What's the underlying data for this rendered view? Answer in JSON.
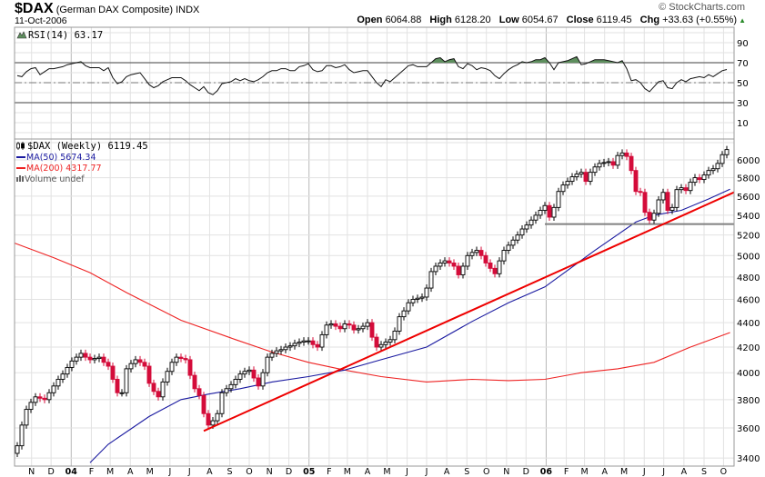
{
  "header": {
    "symbol": "$DAX",
    "name": "(German DAX Composite) INDX",
    "date": "11-Oct-2006",
    "copyright": "© StockCharts.com",
    "quote": {
      "open_label": "Open",
      "open": "6064.88",
      "high_label": "High",
      "high": "6128.20",
      "low_label": "Low",
      "low": "6054.67",
      "close_label": "Close",
      "close": "6119.45",
      "chg_label": "Chg",
      "chg": "+33.63 (+0.55%)",
      "direction_icon": "triangle-up-icon"
    }
  },
  "legend": {
    "rsi": "RSI(14) 63.17",
    "price": "$DAX (Weekly) 6119.45",
    "ma50": "MA(50) 5674.34",
    "ma200": "MA(200) 4317.77",
    "volume": "Volume undef"
  },
  "colors": {
    "up_candle": "#ffffff",
    "down_candle": "#d40c3a",
    "ma50": "#1a1aa0",
    "ma200": "#ee2222",
    "trendline": "#ee0000",
    "support": "#808080",
    "rsi_overbought_fill": "#5e8f5e",
    "chg_up": "#2a8a2a"
  },
  "chart_data": {
    "type": "candlestick",
    "interval": "weekly",
    "x_range": [
      "2003-10-10",
      "2006-10-11"
    ],
    "price_axis": {
      "scale": "log",
      "range": [
        3350,
        6300
      ],
      "ticks": [
        "6000",
        "5800",
        "5600",
        "5400",
        "5200",
        "5000",
        "4800",
        "4600",
        "4400",
        "4200",
        "4000",
        "3800",
        "3600",
        "3400"
      ],
      "side": "right",
      "grid": true
    },
    "month_ticks": [
      {
        "label": "N",
        "date": "2003-11-01"
      },
      {
        "label": "D",
        "date": "2003-12-01"
      },
      {
        "label": "04",
        "date": "2004-01-01",
        "year": true
      },
      {
        "label": "F",
        "date": "2004-02-01"
      },
      {
        "label": "M",
        "date": "2004-03-01"
      },
      {
        "label": "A",
        "date": "2004-04-01"
      },
      {
        "label": "M",
        "date": "2004-05-01"
      },
      {
        "label": "J",
        "date": "2004-06-01"
      },
      {
        "label": "J",
        "date": "2004-07-01"
      },
      {
        "label": "A",
        "date": "2004-08-01"
      },
      {
        "label": "S",
        "date": "2004-09-01"
      },
      {
        "label": "O",
        "date": "2004-10-01"
      },
      {
        "label": "N",
        "date": "2004-11-01"
      },
      {
        "label": "D",
        "date": "2004-12-01"
      },
      {
        "label": "05",
        "date": "2005-01-01",
        "year": true
      },
      {
        "label": "F",
        "date": "2005-02-01"
      },
      {
        "label": "M",
        "date": "2005-03-01"
      },
      {
        "label": "A",
        "date": "2005-04-01"
      },
      {
        "label": "M",
        "date": "2005-05-01"
      },
      {
        "label": "J",
        "date": "2005-06-01"
      },
      {
        "label": "J",
        "date": "2005-07-01"
      },
      {
        "label": "A",
        "date": "2005-08-01"
      },
      {
        "label": "S",
        "date": "2005-09-01"
      },
      {
        "label": "O",
        "date": "2005-10-01"
      },
      {
        "label": "N",
        "date": "2005-11-01"
      },
      {
        "label": "D",
        "date": "2005-12-01"
      },
      {
        "label": "06",
        "date": "2006-01-01",
        "year": true
      },
      {
        "label": "F",
        "date": "2006-02-01"
      },
      {
        "label": "M",
        "date": "2006-03-01"
      },
      {
        "label": "A",
        "date": "2006-04-01"
      },
      {
        "label": "M",
        "date": "2006-05-01"
      },
      {
        "label": "J",
        "date": "2006-06-01"
      },
      {
        "label": "J",
        "date": "2006-07-01"
      },
      {
        "label": "A",
        "date": "2006-08-01"
      },
      {
        "label": "S",
        "date": "2006-09-01"
      },
      {
        "label": "O",
        "date": "2006-10-01"
      }
    ],
    "first_open": 3430,
    "closes": [
      3480,
      3620,
      3730,
      3780,
      3820,
      3810,
      3800,
      3850,
      3900,
      3950,
      3990,
      4040,
      4090,
      4120,
      4150,
      4120,
      4100,
      4110,
      4120,
      4080,
      4050,
      3950,
      3850,
      3850,
      4030,
      4070,
      4100,
      4080,
      4050,
      3920,
      3860,
      3820,
      3930,
      4010,
      4080,
      4120,
      4110,
      4100,
      3980,
      3880,
      3830,
      3700,
      3620,
      3650,
      3700,
      3850,
      3880,
      3910,
      3950,
      3990,
      4010,
      4020,
      3960,
      3900,
      4000,
      4120,
      4150,
      4170,
      4180,
      4200,
      4210,
      4230,
      4240,
      4250,
      4250,
      4220,
      4200,
      4300,
      4380,
      4390,
      4370,
      4350,
      4390,
      4380,
      4340,
      4350,
      4370,
      4400,
      4280,
      4200,
      4220,
      4240,
      4260,
      4330,
      4450,
      4500,
      4570,
      4600,
      4610,
      4620,
      4700,
      4850,
      4900,
      4930,
      4950,
      4930,
      4900,
      4820,
      4900,
      5000,
      5030,
      5050,
      5000,
      4930,
      4880,
      4830,
      4950,
      5050,
      5100,
      5150,
      5200,
      5260,
      5300,
      5350,
      5400,
      5450,
      5500,
      5380,
      5480,
      5650,
      5720,
      5760,
      5810,
      5840,
      5860,
      5760,
      5860,
      5920,
      5960,
      5970,
      5980,
      5940,
      6050,
      6080,
      6040,
      5880,
      5650,
      5640,
      5430,
      5350,
      5420,
      5560,
      5640,
      5450,
      5480,
      5670,
      5690,
      5660,
      5750,
      5800,
      5780,
      5830,
      5880,
      5900,
      5960,
      6060,
      6119.45
    ],
    "ma50": [
      {
        "date": "2004-01-30",
        "value": 3370
      },
      {
        "date": "2004-02-27",
        "value": 3490
      },
      {
        "date": "2004-04-30",
        "value": 3680
      },
      {
        "date": "2004-06-18",
        "value": 3800
      },
      {
        "date": "2004-07-30",
        "value": 3840
      },
      {
        "date": "2004-09-17",
        "value": 3880
      },
      {
        "date": "2004-11-05",
        "value": 3930
      },
      {
        "date": "2004-12-31",
        "value": 3970
      },
      {
        "date": "2005-02-25",
        "value": 4020
      },
      {
        "date": "2005-04-22",
        "value": 4100
      },
      {
        "date": "2005-07-01",
        "value": 4200
      },
      {
        "date": "2005-09-09",
        "value": 4410
      },
      {
        "date": "2005-11-04",
        "value": 4570
      },
      {
        "date": "2005-12-30",
        "value": 4710
      },
      {
        "date": "2006-03-17",
        "value": 5050
      },
      {
        "date": "2006-05-19",
        "value": 5330
      },
      {
        "date": "2006-06-16",
        "value": 5400
      },
      {
        "date": "2006-07-28",
        "value": 5450
      },
      {
        "date": "2006-09-08",
        "value": 5570
      },
      {
        "date": "2006-10-11",
        "value": 5674.34
      }
    ],
    "ma200": [
      {
        "date": "2003-10-06",
        "value": 5120
      },
      {
        "date": "2003-12-05",
        "value": 4980
      },
      {
        "date": "2004-01-30",
        "value": 4840
      },
      {
        "date": "2004-03-26",
        "value": 4660
      },
      {
        "date": "2004-06-18",
        "value": 4420
      },
      {
        "date": "2004-09-10",
        "value": 4260
      },
      {
        "date": "2004-11-05",
        "value": 4160
      },
      {
        "date": "2004-12-31",
        "value": 4080
      },
      {
        "date": "2005-02-25",
        "value": 4020
      },
      {
        "date": "2005-04-22",
        "value": 3970
      },
      {
        "date": "2005-07-01",
        "value": 3930
      },
      {
        "date": "2005-09-09",
        "value": 3950
      },
      {
        "date": "2005-11-04",
        "value": 3940
      },
      {
        "date": "2005-12-30",
        "value": 3950
      },
      {
        "date": "2006-02-24",
        "value": 4000
      },
      {
        "date": "2006-04-21",
        "value": 4030
      },
      {
        "date": "2006-06-16",
        "value": 4080
      },
      {
        "date": "2006-08-11",
        "value": 4200
      },
      {
        "date": "2006-10-11",
        "value": 4317.77
      }
    ],
    "trendline": [
      {
        "date": "2004-07-23",
        "value": 3580
      },
      {
        "date": "2006-10-17",
        "value": 5640
      }
    ],
    "support_line": [
      {
        "date": "2005-12-30",
        "value": 5310
      },
      {
        "date": "2006-10-17",
        "value": 5310
      }
    ],
    "rsi": {
      "period": 14,
      "axis_ticks": [
        "90",
        "70",
        "50",
        "30",
        "10"
      ],
      "overbought": 70,
      "midline": 50,
      "oversold": 30,
      "values": [
        57,
        56,
        61,
        64,
        65,
        58,
        61,
        64,
        64,
        65,
        66,
        68,
        69,
        70,
        71,
        67,
        65,
        65,
        65,
        62,
        65,
        55,
        49,
        51,
        56,
        58,
        59,
        60,
        54,
        48,
        45,
        47,
        51,
        53,
        55,
        55,
        55,
        52,
        48,
        45,
        42,
        46,
        40,
        38,
        42,
        49,
        50,
        51,
        54,
        52,
        54,
        52,
        51,
        53,
        56,
        60,
        62,
        62,
        64,
        64,
        62,
        62,
        66,
        67,
        69,
        63,
        61,
        62,
        67,
        67,
        65,
        66,
        68,
        63,
        60,
        61,
        62,
        62,
        56,
        50,
        46,
        53,
        51,
        55,
        59,
        63,
        67,
        68,
        66,
        66,
        66,
        70,
        74,
        75,
        71,
        73,
        74,
        66,
        64,
        69,
        67,
        63,
        65,
        64,
        62,
        57,
        54,
        59,
        63,
        66,
        68,
        71,
        70,
        71,
        73,
        73,
        75,
        70,
        63,
        70,
        71,
        72,
        74,
        76,
        68,
        69,
        71,
        73,
        73,
        73,
        72,
        71,
        70,
        72,
        64,
        52,
        53,
        50,
        44,
        41,
        46,
        51,
        52,
        45,
        44,
        50,
        53,
        51,
        54,
        55,
        56,
        55,
        58,
        56,
        59,
        62,
        63.17
      ]
    }
  }
}
